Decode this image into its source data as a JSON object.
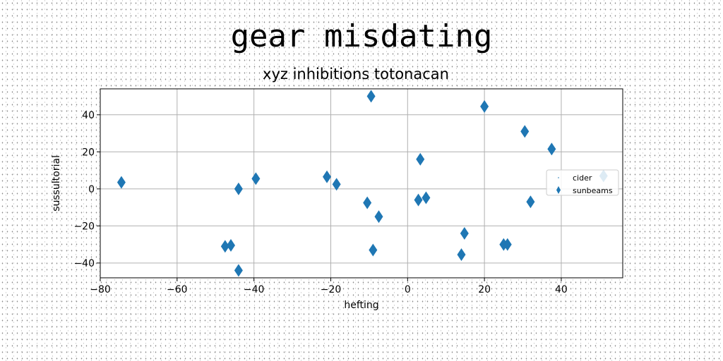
{
  "chart_data": {
    "type": "scatter",
    "suptitle": "gear misdating",
    "title": "xyz inhibitions totonacan",
    "xlabel": "hefting",
    "ylabel": "sussultorial",
    "xlim": [
      -80,
      56
    ],
    "ylim": [
      -48,
      54
    ],
    "xticks": [
      -80,
      -60,
      -40,
      -20,
      0,
      20,
      40
    ],
    "yticks": [
      -40,
      -20,
      0,
      20,
      40
    ],
    "grid": true,
    "legend_position": "right",
    "series": [
      {
        "name": "cider",
        "marker": "point",
        "color": "#1f77b4",
        "points": []
      },
      {
        "name": "sunbeams",
        "marker": "thin_diamond",
        "color": "#1f77b4",
        "points": [
          [
            -74.5,
            3.5
          ],
          [
            -47.5,
            -31
          ],
          [
            -46,
            -30.5
          ],
          [
            -44,
            0
          ],
          [
            -44,
            -44
          ],
          [
            -39.5,
            5.5
          ],
          [
            -21,
            6.5
          ],
          [
            -18.5,
            2.5
          ],
          [
            -10.5,
            -7.5
          ],
          [
            -9.5,
            50
          ],
          [
            -9,
            -33
          ],
          [
            -7.5,
            -15
          ],
          [
            2.8,
            -6
          ],
          [
            3.3,
            16
          ],
          [
            4.8,
            -4.8
          ],
          [
            14,
            -35.5
          ],
          [
            14.8,
            -24
          ],
          [
            20,
            44.5
          ],
          [
            25,
            -30
          ],
          [
            26,
            -30
          ],
          [
            30.5,
            31
          ],
          [
            32,
            -7
          ],
          [
            37.5,
            21.5
          ],
          [
            51,
            7
          ]
        ]
      }
    ]
  }
}
